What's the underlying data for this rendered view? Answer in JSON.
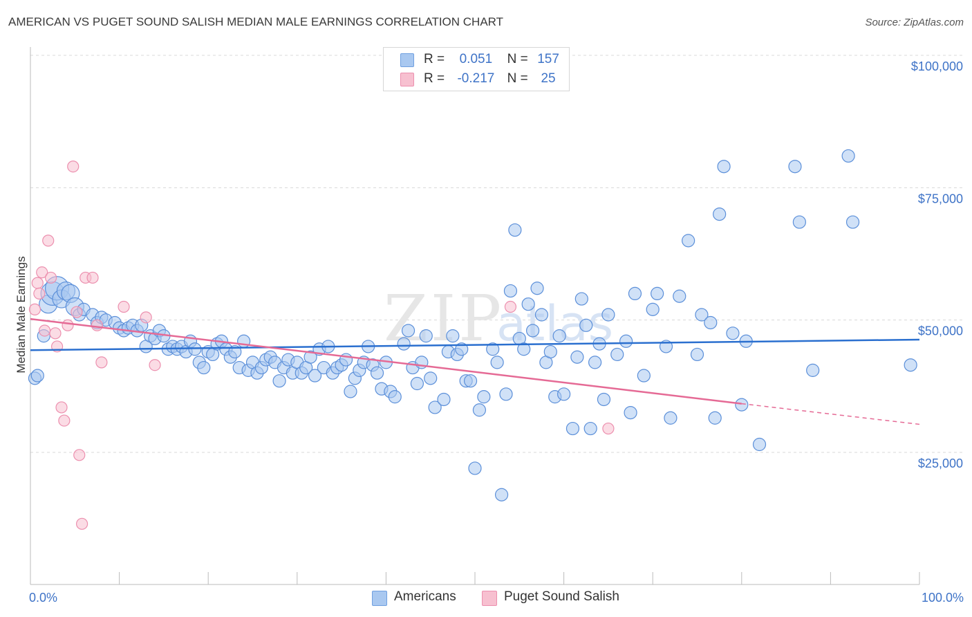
{
  "header": {
    "title": "AMERICAN VS PUGET SOUND SALISH MEDIAN MALE EARNINGS CORRELATION CHART",
    "source": "Source: ZipAtlas.com"
  },
  "legend": {
    "r_label": "R =",
    "n_label": "N =",
    "rows": [
      {
        "r": "0.051",
        "n": "157",
        "color": "#a9c8f0",
        "border": "#6f9fe0"
      },
      {
        "r": "-0.217",
        "n": "25",
        "color": "#f7c0d0",
        "border": "#ec8fae"
      }
    ]
  },
  "bottom_legend": [
    "Americans",
    "Puget Sound Salish"
  ],
  "chart_data": {
    "type": "scatter",
    "ylabel": "Median Male Earnings",
    "xlabel": "",
    "xlim": [
      0,
      100
    ],
    "ylim": [
      0,
      105000
    ],
    "x_tick_labels": [
      "0.0%",
      "100.0%"
    ],
    "y_ticks": [
      25000,
      50000,
      75000,
      100000
    ],
    "y_tick_labels": [
      "$25,000",
      "$50,000",
      "$75,000",
      "$100,000"
    ],
    "grid": "horizontal dashed",
    "watermark": "ZIPatlas",
    "series": [
      {
        "name": "Americans",
        "color": "#a9c8f0",
        "stroke": "#5b8fd9",
        "trend": {
          "x": [
            0,
            100
          ],
          "y": [
            44300,
            46300
          ],
          "color": "#2a6fcf"
        },
        "points": [
          [
            0.5,
            39000
          ],
          [
            0.8,
            39500
          ],
          [
            1.5,
            47000
          ],
          [
            2.0,
            53000
          ],
          [
            2.5,
            55000
          ],
          [
            3.0,
            56000
          ],
          [
            3.5,
            54000
          ],
          [
            4.0,
            55500
          ],
          [
            4.5,
            55000
          ],
          [
            5.0,
            52500
          ],
          [
            5.5,
            51000
          ],
          [
            6.0,
            52000
          ],
          [
            7.0,
            51000
          ],
          [
            7.5,
            49500
          ],
          [
            8.0,
            50500
          ],
          [
            8.5,
            50000
          ],
          [
            9.5,
            49500
          ],
          [
            10.0,
            48500
          ],
          [
            10.5,
            48000
          ],
          [
            11.0,
            48500
          ],
          [
            11.5,
            49000
          ],
          [
            12.0,
            48000
          ],
          [
            12.5,
            49000
          ],
          [
            13.0,
            45000
          ],
          [
            13.5,
            47000
          ],
          [
            14.0,
            46500
          ],
          [
            14.5,
            48000
          ],
          [
            15.0,
            47000
          ],
          [
            15.5,
            44500
          ],
          [
            16.0,
            45000
          ],
          [
            16.5,
            44500
          ],
          [
            17.0,
            45000
          ],
          [
            17.5,
            44000
          ],
          [
            18.0,
            46000
          ],
          [
            18.5,
            44500
          ],
          [
            19.0,
            42000
          ],
          [
            19.5,
            41000
          ],
          [
            20.0,
            44000
          ],
          [
            20.5,
            43500
          ],
          [
            21.0,
            45500
          ],
          [
            21.5,
            46000
          ],
          [
            22.0,
            44500
          ],
          [
            22.5,
            43000
          ],
          [
            23.0,
            44000
          ],
          [
            23.5,
            41000
          ],
          [
            24.0,
            46000
          ],
          [
            24.5,
            40500
          ],
          [
            25.0,
            42000
          ],
          [
            25.5,
            40000
          ],
          [
            26.0,
            41000
          ],
          [
            26.5,
            42500
          ],
          [
            27.0,
            43000
          ],
          [
            27.5,
            42000
          ],
          [
            28.0,
            38500
          ],
          [
            28.5,
            41000
          ],
          [
            29.0,
            42500
          ],
          [
            29.5,
            40000
          ],
          [
            30.0,
            42000
          ],
          [
            30.5,
            40000
          ],
          [
            31.0,
            41000
          ],
          [
            31.5,
            43000
          ],
          [
            32.0,
            39500
          ],
          [
            32.5,
            44500
          ],
          [
            33.0,
            41000
          ],
          [
            33.5,
            45000
          ],
          [
            34.0,
            40000
          ],
          [
            34.5,
            41000
          ],
          [
            35.0,
            41500
          ],
          [
            35.5,
            42500
          ],
          [
            36.0,
            36500
          ],
          [
            36.5,
            39000
          ],
          [
            37.0,
            40500
          ],
          [
            37.5,
            42000
          ],
          [
            38.0,
            45000
          ],
          [
            38.5,
            41500
          ],
          [
            39.0,
            40000
          ],
          [
            39.5,
            37000
          ],
          [
            40.0,
            42000
          ],
          [
            40.5,
            36500
          ],
          [
            41.0,
            35500
          ],
          [
            42.0,
            45500
          ],
          [
            42.5,
            48000
          ],
          [
            43.0,
            41000
          ],
          [
            43.5,
            38000
          ],
          [
            44.0,
            42000
          ],
          [
            44.5,
            47000
          ],
          [
            45.0,
            39000
          ],
          [
            45.5,
            33500
          ],
          [
            46.5,
            35000
          ],
          [
            47.0,
            44000
          ],
          [
            47.5,
            47000
          ],
          [
            48.0,
            43500
          ],
          [
            48.5,
            44500
          ],
          [
            49.0,
            38500
          ],
          [
            49.5,
            38500
          ],
          [
            50.0,
            22000
          ],
          [
            50.5,
            33000
          ],
          [
            51.0,
            35500
          ],
          [
            52.0,
            44500
          ],
          [
            52.5,
            42000
          ],
          [
            53.0,
            17000
          ],
          [
            53.5,
            36000
          ],
          [
            54.0,
            55500
          ],
          [
            54.5,
            67000
          ],
          [
            55.0,
            46500
          ],
          [
            55.5,
            44500
          ],
          [
            56.0,
            53000
          ],
          [
            56.5,
            48000
          ],
          [
            57.0,
            56000
          ],
          [
            57.5,
            51000
          ],
          [
            58.0,
            42000
          ],
          [
            58.5,
            44000
          ],
          [
            59.0,
            35500
          ],
          [
            59.5,
            47000
          ],
          [
            60.0,
            36000
          ],
          [
            61.0,
            29500
          ],
          [
            61.5,
            43000
          ],
          [
            62.0,
            54000
          ],
          [
            62.5,
            49000
          ],
          [
            63.0,
            29500
          ],
          [
            63.5,
            42000
          ],
          [
            64.0,
            45500
          ],
          [
            64.5,
            35000
          ],
          [
            65.0,
            51000
          ],
          [
            66.0,
            43500
          ],
          [
            67.0,
            46000
          ],
          [
            67.5,
            32500
          ],
          [
            68.0,
            55000
          ],
          [
            69.0,
            39500
          ],
          [
            70.0,
            52000
          ],
          [
            70.5,
            55000
          ],
          [
            71.5,
            45000
          ],
          [
            72.0,
            31500
          ],
          [
            73.0,
            54500
          ],
          [
            74.0,
            65000
          ],
          [
            75.0,
            43500
          ],
          [
            75.5,
            51000
          ],
          [
            76.5,
            49500
          ],
          [
            77.0,
            31500
          ],
          [
            77.5,
            70000
          ],
          [
            78.0,
            79000
          ],
          [
            79.0,
            47500
          ],
          [
            80.0,
            34000
          ],
          [
            80.5,
            46000
          ],
          [
            82.0,
            26500
          ],
          [
            86.0,
            79000
          ],
          [
            86.5,
            68500
          ],
          [
            88.0,
            40500
          ],
          [
            92.0,
            81000
          ],
          [
            92.5,
            68500
          ],
          [
            99.0,
            41500
          ]
        ],
        "sizes_note": "cluster near x=2-4 drawn larger"
      },
      {
        "name": "Puget Sound Salish",
        "color": "#f7c0d0",
        "stroke": "#ec8fae",
        "trend": {
          "x": [
            0,
            80
          ],
          "y": [
            50200,
            34200
          ],
          "dash_to": [
            100,
            30300
          ],
          "color": "#e56a95"
        },
        "points": [
          [
            0.5,
            52000
          ],
          [
            0.8,
            57000
          ],
          [
            1.0,
            55000
          ],
          [
            1.3,
            59000
          ],
          [
            1.6,
            48000
          ],
          [
            2.0,
            65000
          ],
          [
            2.3,
            58000
          ],
          [
            2.8,
            47500
          ],
          [
            3.0,
            45000
          ],
          [
            3.5,
            33500
          ],
          [
            3.8,
            31000
          ],
          [
            4.2,
            49000
          ],
          [
            4.8,
            79000
          ],
          [
            5.2,
            51500
          ],
          [
            5.5,
            24500
          ],
          [
            5.8,
            11500
          ],
          [
            6.2,
            58000
          ],
          [
            7.0,
            58000
          ],
          [
            7.5,
            49000
          ],
          [
            8.0,
            42000
          ],
          [
            10.5,
            52500
          ],
          [
            13.0,
            50500
          ],
          [
            14.0,
            41500
          ],
          [
            54.0,
            52500
          ],
          [
            65.0,
            29500
          ]
        ]
      }
    ]
  }
}
